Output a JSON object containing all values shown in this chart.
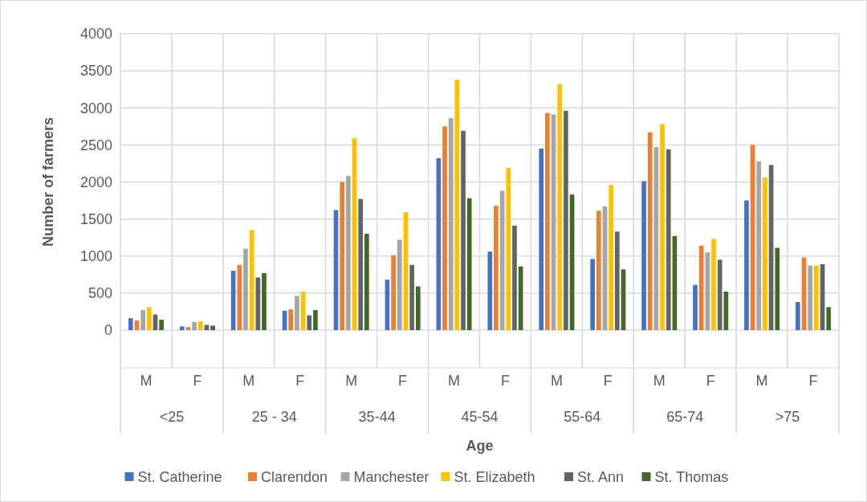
{
  "chart_data": {
    "type": "bar",
    "xlabel": "Age",
    "ylabel": "Number of farmers",
    "categories": [
      "M",
      "F",
      "M",
      "F",
      "M",
      "F",
      "M",
      "F",
      "M",
      "F",
      "M",
      "F",
      "M",
      "F"
    ],
    "annotations": [
      "<25",
      "25 - 34",
      "35-44",
      "45-54",
      "55-64",
      "65-74",
      ">75"
    ],
    "ylim": [
      0,
      4000
    ],
    "yticks": [
      0,
      500,
      1000,
      1500,
      2000,
      2500,
      3000,
      3500,
      4000
    ],
    "grid": true,
    "legend": "bottom",
    "series": [
      {
        "name": "St. Catherine",
        "color": "#4472c4",
        "values": [
          160,
          50,
          800,
          260,
          1620,
          680,
          2320,
          1060,
          2450,
          960,
          2010,
          610,
          1750,
          380
        ]
      },
      {
        "name": "Clarendon",
        "color": "#ed7d31",
        "values": [
          130,
          40,
          880,
          280,
          2000,
          1010,
          2750,
          1680,
          2930,
          1610,
          2670,
          1140,
          2500,
          980
        ]
      },
      {
        "name": "Manchester",
        "color": "#a5a5a5",
        "values": [
          270,
          110,
          1100,
          460,
          2080,
          1220,
          2860,
          1880,
          2910,
          1670,
          2470,
          1050,
          2280,
          870
        ]
      },
      {
        "name": "St. Elizabeth",
        "color": "#ffc000",
        "values": [
          310,
          120,
          1350,
          520,
          2590,
          1590,
          3380,
          2190,
          3320,
          1960,
          2780,
          1230,
          2060,
          870
        ]
      },
      {
        "name": "St. Ann",
        "color": "#636363",
        "values": [
          210,
          70,
          710,
          200,
          1770,
          880,
          2690,
          1410,
          2960,
          1330,
          2440,
          950,
          2230,
          890
        ]
      },
      {
        "name": "St. Thomas",
        "color": "#43682b",
        "values": [
          140,
          60,
          770,
          270,
          1300,
          590,
          1780,
          860,
          1830,
          820,
          1270,
          520,
          1110,
          310
        ]
      }
    ]
  }
}
